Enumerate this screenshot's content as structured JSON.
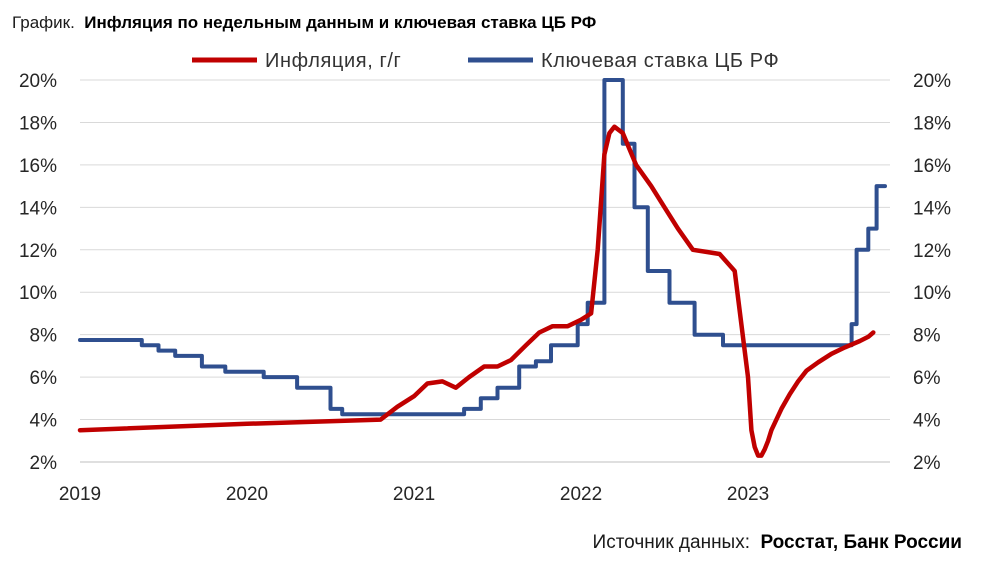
{
  "chart_data": {
    "type": "line",
    "title_prefix": "График.",
    "title": "Инфляция по недельным данным и ключевая ставка ЦБ РФ",
    "source_prefix": "Источник данных:",
    "source": "Росстат, Банк России",
    "x_ticks": [
      "2019",
      "2020",
      "2021",
      "2022",
      "2023"
    ],
    "x_tick_values": [
      2019,
      2020,
      2021,
      2022,
      2023
    ],
    "xlim": [
      2019,
      2023.85
    ],
    "ylim": [
      2,
      20
    ],
    "y_ticks": [
      2,
      4,
      6,
      8,
      10,
      12,
      14,
      16,
      18,
      20
    ],
    "y_tick_labels": [
      "2%",
      "4%",
      "6%",
      "8%",
      "10%",
      "12%",
      "14%",
      "16%",
      "18%",
      "20%"
    ],
    "y_right_tick_labels": [
      "2%",
      "4%",
      "6%",
      "8%",
      "10%",
      "12%",
      "14%",
      "16%",
      "18%",
      "20%"
    ],
    "grid": "horizontal",
    "legend_position": "top",
    "series": [
      {
        "name": "Инфляция, г/г",
        "color": "#c00000",
        "step": false,
        "x": [
          2019.0,
          2020.0,
          2020.8,
          2020.9,
          2021.0,
          2021.08,
          2021.17,
          2021.25,
          2021.33,
          2021.42,
          2021.5,
          2021.58,
          2021.67,
          2021.75,
          2021.83,
          2021.92,
          2022.0,
          2022.06,
          2022.1,
          2022.14,
          2022.17,
          2022.2,
          2022.25,
          2022.33,
          2022.42,
          2022.5,
          2022.58,
          2022.67,
          2022.75,
          2022.83,
          2022.92,
          2023.0,
          2023.02,
          2023.04,
          2023.06,
          2023.08,
          2023.1,
          2023.12,
          2023.14,
          2023.17,
          2023.2,
          2023.25,
          2023.3,
          2023.35,
          2023.42,
          2023.5,
          2023.58,
          2023.67,
          2023.72,
          2023.75
        ],
        "values": [
          3.5,
          3.8,
          4.0,
          4.6,
          5.1,
          5.7,
          5.8,
          5.5,
          6.0,
          6.5,
          6.5,
          6.8,
          7.5,
          8.1,
          8.4,
          8.4,
          8.7,
          9.0,
          12.0,
          16.5,
          17.5,
          17.8,
          17.5,
          16.0,
          15.0,
          14.0,
          13.0,
          12.0,
          11.9,
          11.8,
          11.0,
          6.0,
          3.5,
          2.7,
          2.3,
          2.3,
          2.6,
          3.0,
          3.5,
          4.0,
          4.5,
          5.2,
          5.8,
          6.3,
          6.7,
          7.1,
          7.4,
          7.7,
          7.9,
          8.1
        ]
      },
      {
        "name": "Ключевая ставка ЦБ РФ",
        "color": "#2f4f8f",
        "step": true,
        "x": [
          2019.0,
          2019.37,
          2019.47,
          2019.57,
          2019.73,
          2019.87,
          2020.1,
          2020.3,
          2020.5,
          2020.57,
          2020.93,
          2021.3,
          2021.4,
          2021.5,
          2021.63,
          2021.73,
          2021.82,
          2021.98,
          2022.04,
          2022.14,
          2022.25,
          2022.32,
          2022.4,
          2022.53,
          2022.68,
          2022.85,
          2023.0,
          2023.2,
          2023.35,
          2023.58,
          2023.62,
          2023.65,
          2023.72,
          2023.77,
          2023.82
        ],
        "values": [
          7.75,
          7.5,
          7.25,
          7.0,
          6.5,
          6.25,
          6.0,
          5.5,
          4.5,
          4.25,
          4.25,
          4.5,
          5.0,
          5.5,
          6.5,
          6.75,
          7.5,
          8.5,
          9.5,
          20.0,
          17.0,
          14.0,
          11.0,
          9.5,
          8.0,
          7.5,
          7.5,
          7.5,
          7.5,
          7.5,
          8.5,
          12.0,
          13.0,
          15.0,
          15.0
        ]
      }
    ]
  }
}
